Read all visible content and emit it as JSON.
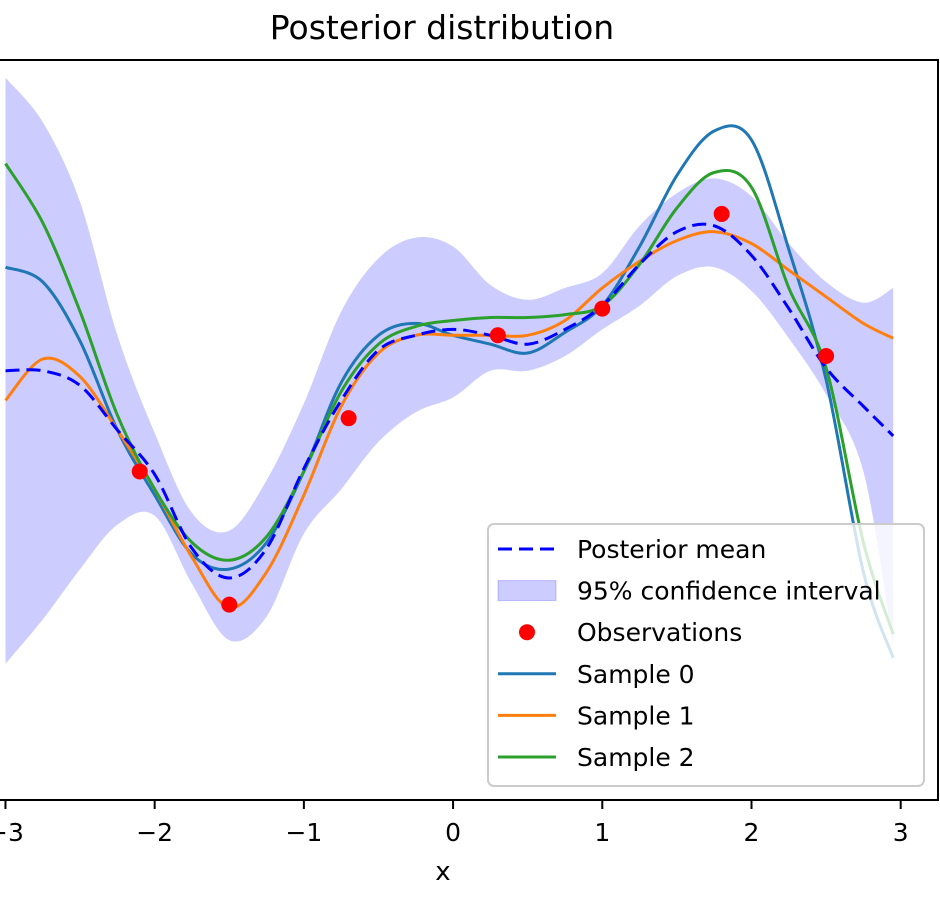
{
  "chart_data": {
    "type": "line",
    "title": "Posterior distribution",
    "xlabel": "x",
    "ylabel": "",
    "xlim": [
      -3.05,
      3.25
    ],
    "ylim": [
      -1.45,
      1.05
    ],
    "xticks": [
      {
        "value": -3,
        "label": "−3"
      },
      {
        "value": -2,
        "label": "−2"
      },
      {
        "value": -1,
        "label": "−1"
      },
      {
        "value": 0,
        "label": "0"
      },
      {
        "value": 1,
        "label": "1"
      },
      {
        "value": 2,
        "label": "2"
      },
      {
        "value": 3,
        "label": "3"
      }
    ],
    "grid": false,
    "legend_position": "lower-right",
    "x": [
      -3.0,
      -2.75,
      -2.5,
      -2.25,
      -2.0,
      -1.75,
      -1.5,
      -1.25,
      -1.0,
      -0.75,
      -0.5,
      -0.25,
      0.0,
      0.25,
      0.5,
      0.75,
      1.0,
      1.25,
      1.5,
      1.75,
      2.0,
      2.25,
      2.5,
      2.75,
      2.95
    ],
    "observations": {
      "name": "Observations",
      "color": "#ff0000",
      "points": [
        [
          -2.1,
          -0.34
        ],
        [
          -1.5,
          -0.79
        ],
        [
          -0.7,
          -0.16
        ],
        [
          0.3,
          0.12
        ],
        [
          1.0,
          0.21
        ],
        [
          1.8,
          0.53
        ],
        [
          2.5,
          0.05
        ]
      ]
    },
    "mean": {
      "name": "Posterior mean",
      "color": "#0000ff",
      "values": [
        0.0,
        0.0,
        -0.05,
        -0.2,
        -0.35,
        -0.6,
        -0.7,
        -0.6,
        -0.33,
        -0.1,
        0.07,
        0.12,
        0.14,
        0.12,
        0.09,
        0.14,
        0.22,
        0.36,
        0.47,
        0.49,
        0.39,
        0.21,
        0.01,
        -0.12,
        -0.22
      ]
    },
    "confidence_interval": {
      "name": "95% confidence interval",
      "color": "#0000ff",
      "lower": [
        -0.99,
        -0.84,
        -0.67,
        -0.52,
        -0.49,
        -0.72,
        -0.91,
        -0.83,
        -0.55,
        -0.4,
        -0.24,
        -0.14,
        -0.09,
        0.0,
        0.0,
        0.05,
        0.14,
        0.22,
        0.32,
        0.35,
        0.27,
        0.11,
        -0.08,
        -0.34,
        -0.93
      ],
      "upper": [
        0.99,
        0.84,
        0.57,
        0.12,
        -0.21,
        -0.48,
        -0.54,
        -0.37,
        -0.11,
        0.2,
        0.38,
        0.45,
        0.42,
        0.29,
        0.24,
        0.28,
        0.33,
        0.49,
        0.6,
        0.65,
        0.59,
        0.43,
        0.3,
        0.23,
        0.28
      ]
    },
    "series": [
      {
        "name": "Sample 0",
        "color": "#1f77b4",
        "values": [
          0.35,
          0.3,
          0.1,
          -0.2,
          -0.42,
          -0.62,
          -0.67,
          -0.58,
          -0.34,
          -0.04,
          0.12,
          0.16,
          0.12,
          0.09,
          0.06,
          0.13,
          0.22,
          0.42,
          0.66,
          0.81,
          0.78,
          0.41,
          -0.03,
          -0.68,
          -0.97
        ]
      },
      {
        "name": "Sample 1",
        "color": "#ff7f0e",
        "values": [
          -0.1,
          0.04,
          -0.02,
          -0.2,
          -0.4,
          -0.63,
          -0.8,
          -0.68,
          -0.42,
          -0.12,
          0.06,
          0.12,
          0.12,
          0.12,
          0.12,
          0.17,
          0.28,
          0.37,
          0.44,
          0.47,
          0.43,
          0.34,
          0.25,
          0.16,
          0.11
        ]
      },
      {
        "name": "Sample 2",
        "color": "#2ca02c",
        "values": [
          0.7,
          0.5,
          0.2,
          -0.15,
          -0.4,
          -0.58,
          -0.64,
          -0.56,
          -0.34,
          -0.07,
          0.09,
          0.15,
          0.17,
          0.18,
          0.18,
          0.19,
          0.22,
          0.36,
          0.55,
          0.67,
          0.62,
          0.28,
          0.01,
          -0.58,
          -0.89
        ]
      }
    ]
  }
}
